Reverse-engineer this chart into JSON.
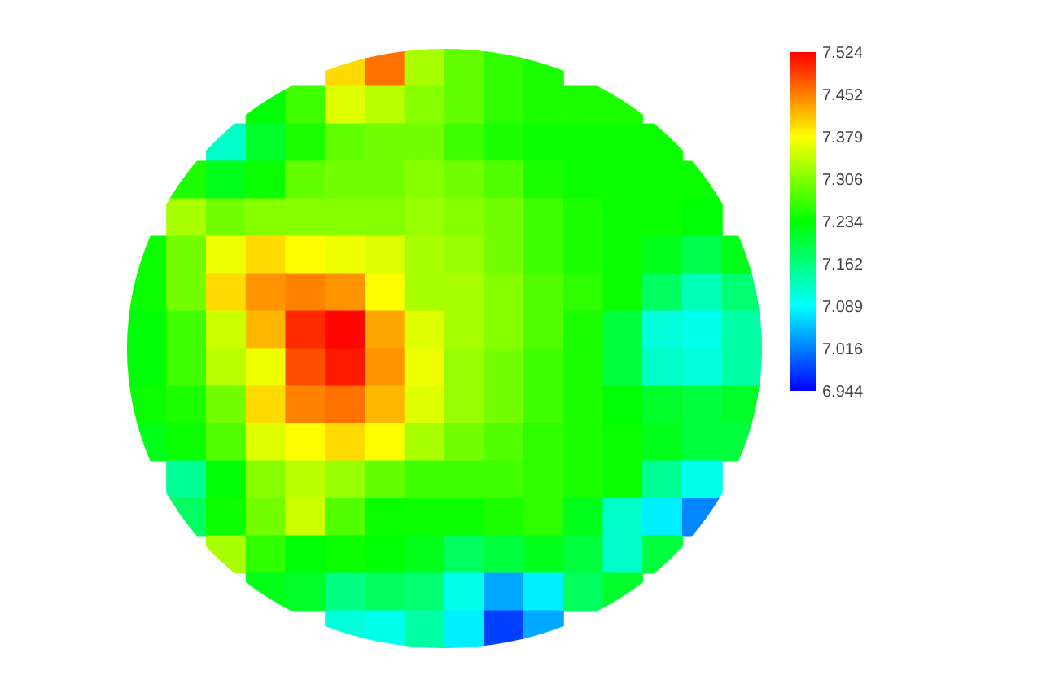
{
  "chart_data": {
    "type": "heatmap",
    "categories": [
      null,
      null,
      null,
      null,
      null,
      null,
      null,
      null,
      null,
      null,
      null,
      null,
      null,
      null,
      null,
      null
    ],
    "y_categories": [
      null,
      null,
      null,
      null,
      null,
      null,
      null,
      null,
      null,
      null,
      null,
      null,
      null,
      null,
      null,
      null
    ],
    "cells": [
      [
        null,
        null,
        null,
        null,
        null,
        7.4,
        7.46,
        7.33,
        7.29,
        7.26,
        7.25,
        null,
        null,
        null,
        null,
        null
      ],
      [
        null,
        null,
        null,
        7.23,
        7.27,
        7.36,
        7.34,
        7.31,
        7.29,
        7.26,
        7.25,
        7.25,
        7.25,
        null,
        null,
        null
      ],
      [
        null,
        null,
        7.12,
        7.21,
        7.25,
        7.29,
        7.3,
        7.3,
        7.27,
        7.25,
        7.24,
        7.24,
        7.24,
        7.24,
        null,
        null
      ],
      [
        null,
        7.25,
        7.22,
        7.24,
        7.29,
        7.3,
        7.3,
        7.31,
        7.3,
        7.28,
        7.25,
        7.24,
        7.24,
        7.24,
        7.24,
        null
      ],
      [
        null,
        7.33,
        7.3,
        7.31,
        7.31,
        7.31,
        7.31,
        7.32,
        7.31,
        7.3,
        7.27,
        7.25,
        7.24,
        7.24,
        7.23,
        null
      ],
      [
        7.24,
        7.3,
        7.37,
        7.4,
        7.38,
        7.37,
        7.36,
        7.33,
        7.32,
        7.3,
        7.27,
        7.25,
        7.24,
        7.22,
        7.19,
        7.22
      ],
      [
        7.24,
        7.3,
        7.4,
        7.44,
        7.45,
        7.44,
        7.38,
        7.33,
        7.33,
        7.31,
        7.28,
        7.26,
        7.24,
        7.18,
        7.13,
        7.17
      ],
      [
        7.23,
        7.27,
        7.35,
        7.42,
        7.5,
        7.52,
        7.43,
        7.36,
        7.33,
        7.31,
        7.28,
        7.25,
        7.2,
        7.11,
        7.1,
        7.14
      ],
      [
        7.23,
        7.27,
        7.34,
        7.37,
        7.48,
        7.51,
        7.44,
        7.37,
        7.32,
        7.3,
        7.27,
        7.25,
        7.2,
        7.12,
        7.11,
        7.14
      ],
      [
        7.24,
        7.25,
        7.3,
        7.4,
        7.45,
        7.46,
        7.42,
        7.36,
        7.32,
        7.3,
        7.27,
        7.25,
        7.23,
        7.21,
        7.2,
        7.21
      ],
      [
        7.22,
        7.24,
        7.28,
        7.36,
        7.38,
        7.4,
        7.38,
        7.33,
        7.3,
        7.28,
        7.26,
        7.25,
        7.24,
        7.22,
        7.2,
        7.2
      ],
      [
        null,
        7.15,
        7.23,
        7.31,
        7.34,
        7.32,
        7.29,
        7.27,
        7.27,
        7.27,
        7.26,
        7.25,
        7.24,
        7.15,
        7.1,
        null
      ],
      [
        null,
        7.18,
        7.24,
        7.3,
        7.35,
        7.28,
        7.24,
        7.24,
        7.24,
        7.25,
        7.26,
        7.22,
        7.12,
        7.08,
        7.02,
        null
      ],
      [
        null,
        null,
        7.33,
        7.26,
        7.23,
        7.24,
        7.23,
        7.22,
        7.18,
        7.2,
        7.22,
        7.2,
        7.12,
        7.2,
        null,
        null
      ],
      [
        null,
        null,
        null,
        7.22,
        7.21,
        7.16,
        7.18,
        7.17,
        7.1,
        7.04,
        7.08,
        7.18,
        7.21,
        null,
        null,
        null
      ],
      [
        null,
        null,
        null,
        null,
        null,
        7.11,
        7.1,
        7.14,
        7.08,
        6.98,
        7.04,
        null,
        null,
        null,
        null,
        null
      ]
    ],
    "clim": [
      6.944,
      7.524
    ],
    "cticks": [
      6.944,
      7.016,
      7.089,
      7.162,
      7.234,
      7.306,
      7.379,
      7.452,
      7.524
    ]
  }
}
